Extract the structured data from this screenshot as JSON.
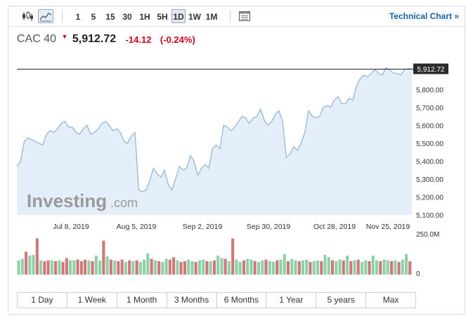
{
  "toolbar": {
    "candles_icon": "candlestick-icon",
    "line_icon": "line-chart-icon",
    "intervals": [
      {
        "label": "1",
        "active": false
      },
      {
        "label": "5",
        "active": false
      },
      {
        "label": "15",
        "active": false
      },
      {
        "label": "30",
        "active": false
      },
      {
        "label": "1H",
        "active": false
      },
      {
        "label": "5H",
        "active": false
      },
      {
        "label": "1D",
        "active": true
      },
      {
        "label": "1W",
        "active": false
      },
      {
        "label": "1M",
        "active": false
      }
    ],
    "table_icon": "data-table-icon",
    "technical_chart_label": "Technical Chart »"
  },
  "quote": {
    "name": "CAC 40",
    "price": "5,912.72",
    "change": "-14.12",
    "change_pct": "(-0.24%)"
  },
  "colors": {
    "line": "#8fb3d4",
    "area": "#e4eef8",
    "down": "#d0021b",
    "vol_up": "#8fd0a8",
    "vol_down": "#cf7878",
    "link": "#1a5fa8"
  },
  "chart_data": {
    "type": "area",
    "current_value_label": "5,912.72",
    "current_value": 5912.72,
    "ylim": [
      5100,
      5950
    ],
    "y_ticks": [
      "5,100.00",
      "5,200.00",
      "5,300.00",
      "5,400.00",
      "5,500.00",
      "5,600.00",
      "5,700.00",
      "5,800.00"
    ],
    "y_tick_values": [
      5100,
      5200,
      5300,
      5400,
      5500,
      5600,
      5700,
      5800
    ],
    "x_ticks": [
      "Jul 8, 2019",
      "Aug 5, 2019",
      "Sep 2, 2019",
      "Sep 30, 2019",
      "Oct 28, 2019",
      "Nov 25, 2019"
    ],
    "values": [
      5370,
      5400,
      5510,
      5530,
      5520,
      5510,
      5500,
      5490,
      5550,
      5570,
      5560,
      5580,
      5610,
      5620,
      5590,
      5590,
      5560,
      5550,
      5580,
      5600,
      5550,
      5560,
      5580,
      5610,
      5620,
      5600,
      5570,
      5580,
      5560,
      5510,
      5500,
      5540,
      5560,
      5240,
      5230,
      5240,
      5290,
      5360,
      5330,
      5310,
      5350,
      5270,
      5240,
      5300,
      5370,
      5350,
      5360,
      5430,
      5400,
      5320,
      5360,
      5380,
      5360,
      5470,
      5490,
      5470,
      5600,
      5590,
      5570,
      5590,
      5620,
      5650,
      5640,
      5610,
      5640,
      5650,
      5690,
      5630,
      5600,
      5620,
      5660,
      5680,
      5620,
      5420,
      5440,
      5480,
      5460,
      5500,
      5560,
      5680,
      5650,
      5640,
      5650,
      5700,
      5710,
      5700,
      5740,
      5760,
      5720,
      5720,
      5750,
      5740,
      5820,
      5860,
      5880,
      5870,
      5890,
      5910,
      5890,
      5880,
      5920,
      5910,
      5890,
      5890,
      5880,
      5910,
      5915,
      5912.72
    ],
    "volume_axis_top": "250.0M",
    "volume_axis_bottom": "0",
    "volume_max": 250,
    "volumes": [
      {
        "v": 90,
        "up": true
      },
      {
        "v": 100,
        "up": true
      },
      {
        "v": 145,
        "up": false
      },
      {
        "v": 120,
        "up": true
      },
      {
        "v": 125,
        "up": true
      },
      {
        "v": 230,
        "up": false
      },
      {
        "v": 90,
        "up": true
      },
      {
        "v": 85,
        "up": false
      },
      {
        "v": 90,
        "up": false
      },
      {
        "v": 90,
        "up": true
      },
      {
        "v": 85,
        "up": false
      },
      {
        "v": 90,
        "up": true
      },
      {
        "v": 80,
        "up": false
      },
      {
        "v": 105,
        "up": false
      },
      {
        "v": 90,
        "up": true
      },
      {
        "v": 90,
        "up": true
      },
      {
        "v": 95,
        "up": false
      },
      {
        "v": 85,
        "up": false
      },
      {
        "v": 95,
        "up": false
      },
      {
        "v": 90,
        "up": true
      },
      {
        "v": 85,
        "up": false
      },
      {
        "v": 120,
        "up": true
      },
      {
        "v": 90,
        "up": true
      },
      {
        "v": 215,
        "up": false
      },
      {
        "v": 115,
        "up": true
      },
      {
        "v": 95,
        "up": false
      },
      {
        "v": 90,
        "up": true
      },
      {
        "v": 85,
        "up": false
      },
      {
        "v": 95,
        "up": false
      },
      {
        "v": 80,
        "up": true
      },
      {
        "v": 90,
        "up": false
      },
      {
        "v": 85,
        "up": true
      },
      {
        "v": 90,
        "up": false
      },
      {
        "v": 80,
        "up": true
      },
      {
        "v": 95,
        "up": true
      },
      {
        "v": 135,
        "up": true
      },
      {
        "v": 100,
        "up": false
      },
      {
        "v": 90,
        "up": true
      },
      {
        "v": 85,
        "up": false
      },
      {
        "v": 80,
        "up": true
      },
      {
        "v": 100,
        "up": true
      },
      {
        "v": 95,
        "up": false
      },
      {
        "v": 110,
        "up": false
      },
      {
        "v": 90,
        "up": true
      },
      {
        "v": 80,
        "up": false
      },
      {
        "v": 85,
        "up": false
      },
      {
        "v": 95,
        "up": true
      },
      {
        "v": 85,
        "up": true
      },
      {
        "v": 80,
        "up": false
      },
      {
        "v": 90,
        "up": true
      },
      {
        "v": 95,
        "up": true
      },
      {
        "v": 85,
        "up": false
      },
      {
        "v": 85,
        "up": true
      },
      {
        "v": 90,
        "up": false
      },
      {
        "v": 120,
        "up": true
      },
      {
        "v": 105,
        "up": true
      },
      {
        "v": 100,
        "up": false
      },
      {
        "v": 85,
        "up": true
      },
      {
        "v": 230,
        "up": false
      },
      {
        "v": 95,
        "up": true
      },
      {
        "v": 80,
        "up": true
      },
      {
        "v": 90,
        "up": false
      },
      {
        "v": 100,
        "up": true
      },
      {
        "v": 95,
        "up": true
      },
      {
        "v": 85,
        "up": false
      },
      {
        "v": 80,
        "up": true
      },
      {
        "v": 90,
        "up": true
      },
      {
        "v": 95,
        "up": false
      },
      {
        "v": 85,
        "up": true
      },
      {
        "v": 80,
        "up": true
      },
      {
        "v": 90,
        "up": false
      },
      {
        "v": 95,
        "up": true
      },
      {
        "v": 130,
        "up": true
      },
      {
        "v": 85,
        "up": false
      },
      {
        "v": 100,
        "up": true
      },
      {
        "v": 90,
        "up": true
      },
      {
        "v": 85,
        "up": false
      },
      {
        "v": 90,
        "up": true
      },
      {
        "v": 95,
        "up": true
      },
      {
        "v": 80,
        "up": false
      },
      {
        "v": 85,
        "up": true
      },
      {
        "v": 90,
        "up": true
      },
      {
        "v": 85,
        "up": false
      },
      {
        "v": 125,
        "up": true
      },
      {
        "v": 110,
        "up": true
      },
      {
        "v": 90,
        "up": false
      },
      {
        "v": 85,
        "up": true
      },
      {
        "v": 95,
        "up": true
      },
      {
        "v": 90,
        "up": false
      },
      {
        "v": 120,
        "up": true
      },
      {
        "v": 85,
        "up": false
      },
      {
        "v": 90,
        "up": true
      },
      {
        "v": 95,
        "up": false
      },
      {
        "v": 80,
        "up": true
      },
      {
        "v": 90,
        "up": true
      },
      {
        "v": 85,
        "up": false
      },
      {
        "v": 120,
        "up": true
      },
      {
        "v": 90,
        "up": true
      },
      {
        "v": 85,
        "up": false
      },
      {
        "v": 95,
        "up": true
      },
      {
        "v": 90,
        "up": true
      },
      {
        "v": 85,
        "up": false
      },
      {
        "v": 90,
        "up": true
      },
      {
        "v": 80,
        "up": false
      },
      {
        "v": 95,
        "up": true
      },
      {
        "v": 130,
        "up": true
      },
      {
        "v": 85,
        "up": false
      }
    ],
    "watermark_text": "Investing",
    "watermark_suffix": ".com"
  },
  "periods": [
    "1 Day",
    "1 Week",
    "1 Month",
    "3 Months",
    "6 Months",
    "1 Year",
    "5 years",
    "Max"
  ]
}
